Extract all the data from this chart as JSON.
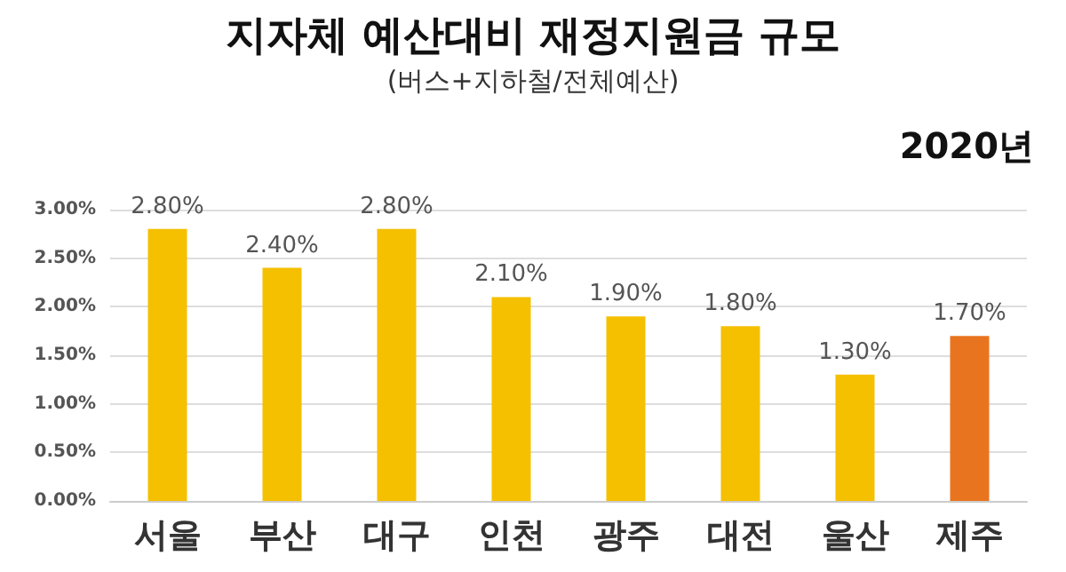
{
  "chart_data": {
    "type": "bar",
    "title": "지자체 예산대비 재정지원금 규모",
    "subtitle": "(버스+지하철/전체예산)",
    "annotations": [
      "2020년"
    ],
    "categories": [
      "서울",
      "부산",
      "대구",
      "인천",
      "광주",
      "대전",
      "울산",
      "제주"
    ],
    "values": [
      2.8,
      2.4,
      2.8,
      2.1,
      1.9,
      1.8,
      1.3,
      1.7
    ],
    "colors": [
      "#f5c000",
      "#f5c000",
      "#f5c000",
      "#f5c000",
      "#f5c000",
      "#f5c000",
      "#f5c000",
      "#e9741f"
    ],
    "value_labels": [
      "2.80%",
      "2.40%",
      "2.80%",
      "2.10%",
      "1.90%",
      "1.80%",
      "1.30%",
      "1.70%"
    ],
    "ylim": [
      0,
      3
    ],
    "yticks": [
      {
        "value": 0,
        "label": "0.00%"
      },
      {
        "value": 0.5,
        "label": "0.50%"
      },
      {
        "value": 1,
        "label": "1.00%"
      },
      {
        "value": 1.5,
        "label": "1.50%"
      },
      {
        "value": 2,
        "label": "2.00%"
      },
      {
        "value": 2.5,
        "label": "2.50%"
      },
      {
        "value": 3,
        "label": "3.00%"
      }
    ],
    "grid": "y"
  }
}
